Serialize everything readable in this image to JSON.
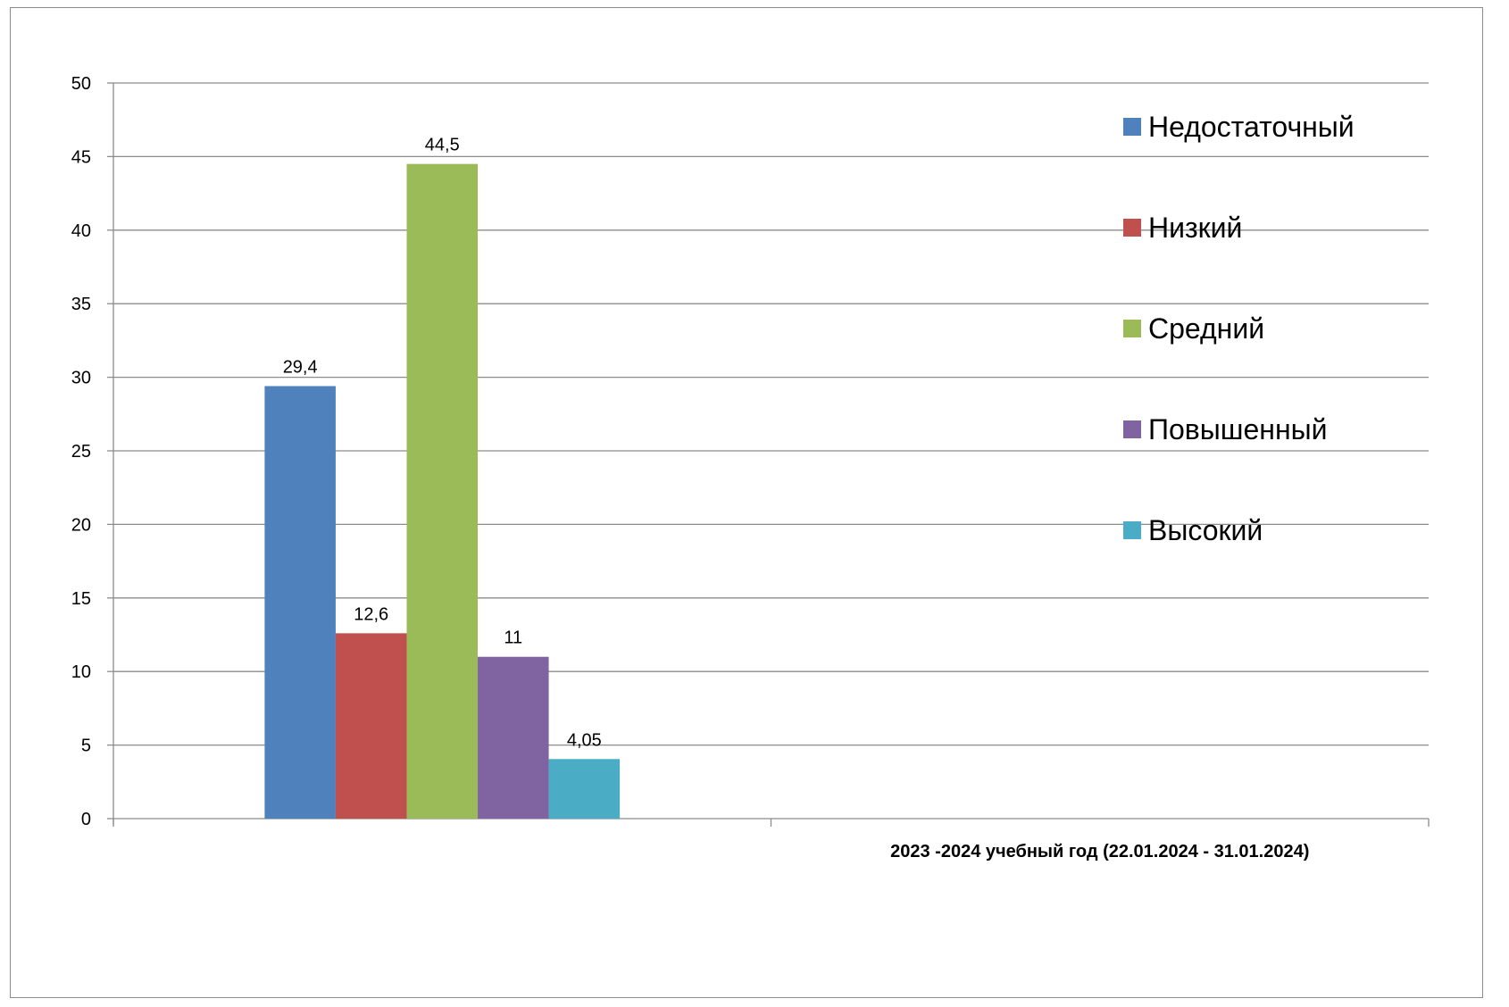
{
  "chart_data": {
    "type": "bar",
    "title": "",
    "xlabel": "",
    "ylabel": "",
    "ylim": [
      0,
      50
    ],
    "yticks": [
      0,
      5,
      10,
      15,
      20,
      25,
      30,
      35,
      40,
      45,
      50
    ],
    "grid": true,
    "legend_position": "right",
    "categories": [
      "",
      "2023 -2024 учебный год (22.01.2024 - 31.01.2024)"
    ],
    "series": [
      {
        "name": "Недостаточный",
        "color": "#4f81bd",
        "values": [
          29.4,
          null
        ],
        "labels": [
          "29,4",
          ""
        ]
      },
      {
        "name": "Низкий",
        "color": "#c0504d",
        "values": [
          12.6,
          null
        ],
        "labels": [
          "12,6",
          ""
        ]
      },
      {
        "name": "Средний",
        "color": "#9bbb59",
        "values": [
          44.5,
          null
        ],
        "labels": [
          "44,5",
          ""
        ]
      },
      {
        "name": "Повышенный",
        "color": "#8064a2",
        "values": [
          11,
          null
        ],
        "labels": [
          "11",
          ""
        ]
      },
      {
        "name": "Высокий",
        "color": "#4bacc6",
        "values": [
          4.05,
          null
        ],
        "labels": [
          "4,05",
          ""
        ]
      }
    ]
  }
}
